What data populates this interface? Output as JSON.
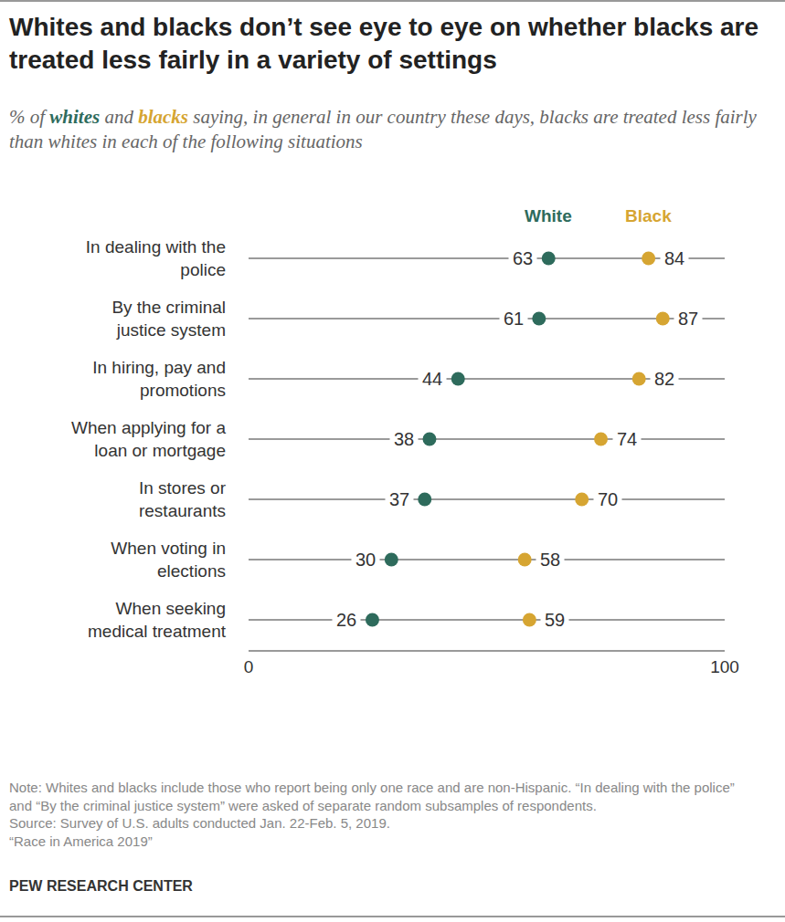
{
  "chart_data": {
    "type": "dot",
    "title": "Whites and blacks don’t see eye to eye on whether blacks are treated less fairly in a variety of settings",
    "subtitle": "% of whites and blacks saying, in general in our country these days, blacks are treated less fairly than whites in each of the following situations",
    "categories": [
      "In dealing with the police",
      "By the criminal justice system",
      "In hiring, pay and promotions",
      "When applying for a loan or mortgage",
      "In stores or restaurants",
      "When voting in elections",
      "When seeking medical treatment"
    ],
    "series": [
      {
        "name": "White",
        "color": "#2e6b5c",
        "values": [
          63,
          61,
          44,
          38,
          37,
          30,
          26
        ]
      },
      {
        "name": "Black",
        "color": "#d6a532",
        "values": [
          84,
          87,
          82,
          74,
          70,
          58,
          59
        ]
      }
    ],
    "xlim": [
      0,
      100
    ],
    "xticks": [
      0,
      100
    ],
    "grid": true,
    "orientation": "horizontal",
    "data_labels": true,
    "notes": [
      "Note: Whites and blacks include those who report being only one race and are non-Hispanic. “In dealing with the police” and “By the criminal justice system” were asked of separate random subsamples of respondents.",
      "Source: Survey of U.S. adults conducted Jan. 22-Feb. 5, 2019.",
      "“Race in America 2019”"
    ],
    "credit": "PEW RESEARCH CENTER"
  }
}
